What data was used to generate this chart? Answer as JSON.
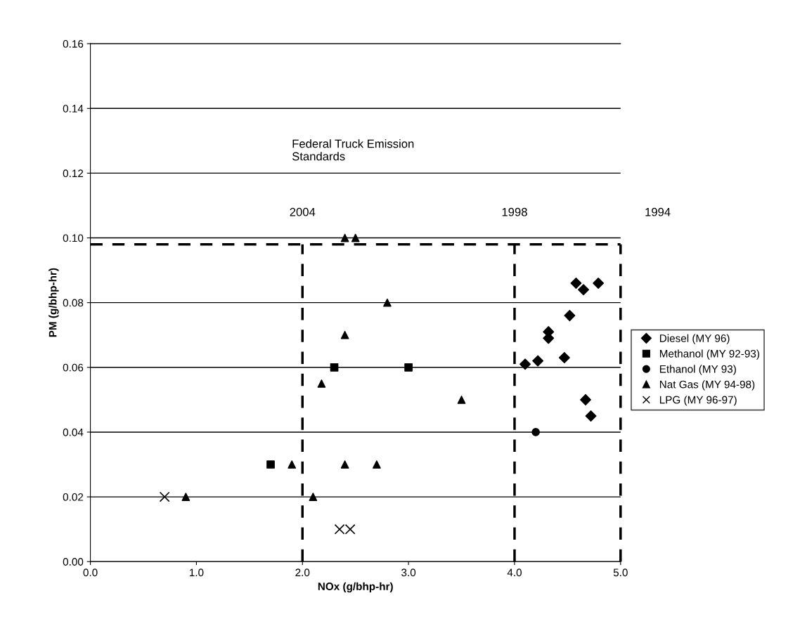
{
  "chart_data": {
    "type": "scatter",
    "xlabel": "NOx (g/bhp-hr)",
    "ylabel": "PM (g/bhp-hr)",
    "xlim": [
      0,
      5
    ],
    "ylim": [
      0,
      0.16
    ],
    "xticks": [
      {
        "value": 0,
        "label": "0.0"
      },
      {
        "value": 1,
        "label": "1.0"
      },
      {
        "value": 2,
        "label": "2.0"
      },
      {
        "value": 3,
        "label": "3.0"
      },
      {
        "value": 4,
        "label": "4.0"
      },
      {
        "value": 5,
        "label": "5.0"
      }
    ],
    "yticks": [
      {
        "value": 0,
        "label": "0.00"
      },
      {
        "value": 0.02,
        "label": "0.02"
      },
      {
        "value": 0.04,
        "label": "0.04"
      },
      {
        "value": 0.06,
        "label": "0.06"
      },
      {
        "value": 0.08,
        "label": "0.08"
      },
      {
        "value": 0.1,
        "label": "0.10"
      },
      {
        "value": 0.12,
        "label": "0.12"
      },
      {
        "value": 0.14,
        "label": "0.14"
      },
      {
        "value": 0.16,
        "label": "0.16"
      }
    ],
    "grid": "y",
    "legend": "right",
    "series": [
      {
        "name": "Diesel (MY 96)",
        "color": "#000000",
        "marker": "diamond",
        "x": [
          4.1,
          4.22,
          4.32,
          4.32,
          4.47,
          4.52,
          4.58,
          4.65,
          4.79,
          4.67,
          4.72
        ],
        "values": [
          0.061,
          0.062,
          0.071,
          0.069,
          0.063,
          0.076,
          0.086,
          0.084,
          0.086,
          0.05,
          0.045
        ]
      },
      {
        "name": "Methanol (MY 92-93)",
        "color": "#000000",
        "marker": "square",
        "x": [
          1.7,
          2.3,
          3.0
        ],
        "values": [
          0.03,
          0.06,
          0.06
        ]
      },
      {
        "name": "Ethanol (MY 93)",
        "color": "#000000",
        "marker": "circle",
        "x": [
          4.2
        ],
        "values": [
          0.04
        ]
      },
      {
        "name": "Nat Gas (MY 94-98)",
        "color": "#000000",
        "marker": "triangle",
        "x": [
          0.9,
          1.9,
          2.1,
          2.18,
          2.4,
          2.4,
          2.4,
          2.5,
          2.7,
          2.8,
          3.5
        ],
        "values": [
          0.02,
          0.03,
          0.02,
          0.055,
          0.07,
          0.03,
          0.1,
          0.1,
          0.03,
          0.08,
          0.05
        ]
      },
      {
        "name": "LPG (MY 96-97)",
        "color": "#000000",
        "marker": "cross",
        "x": [
          0.7,
          2.35,
          2.45
        ],
        "values": [
          0.02,
          0.01,
          0.01
        ]
      }
    ],
    "ref_lines": [
      {
        "axis": "y",
        "value": 0.098,
        "line_style": "dashed",
        "color": "#000000"
      },
      {
        "axis": "x",
        "value": 2.0,
        "line_style": "dashed",
        "color": "#000000"
      },
      {
        "axis": "x",
        "value": 4.0,
        "line_style": "dashed",
        "color": "#000000"
      },
      {
        "axis": "x",
        "value": 5.0,
        "line_style": "dashed",
        "color": "#000000"
      }
    ],
    "annotations": [
      "Federal Truck Emission\nStandards",
      "2004",
      "1998",
      "1994"
    ]
  }
}
